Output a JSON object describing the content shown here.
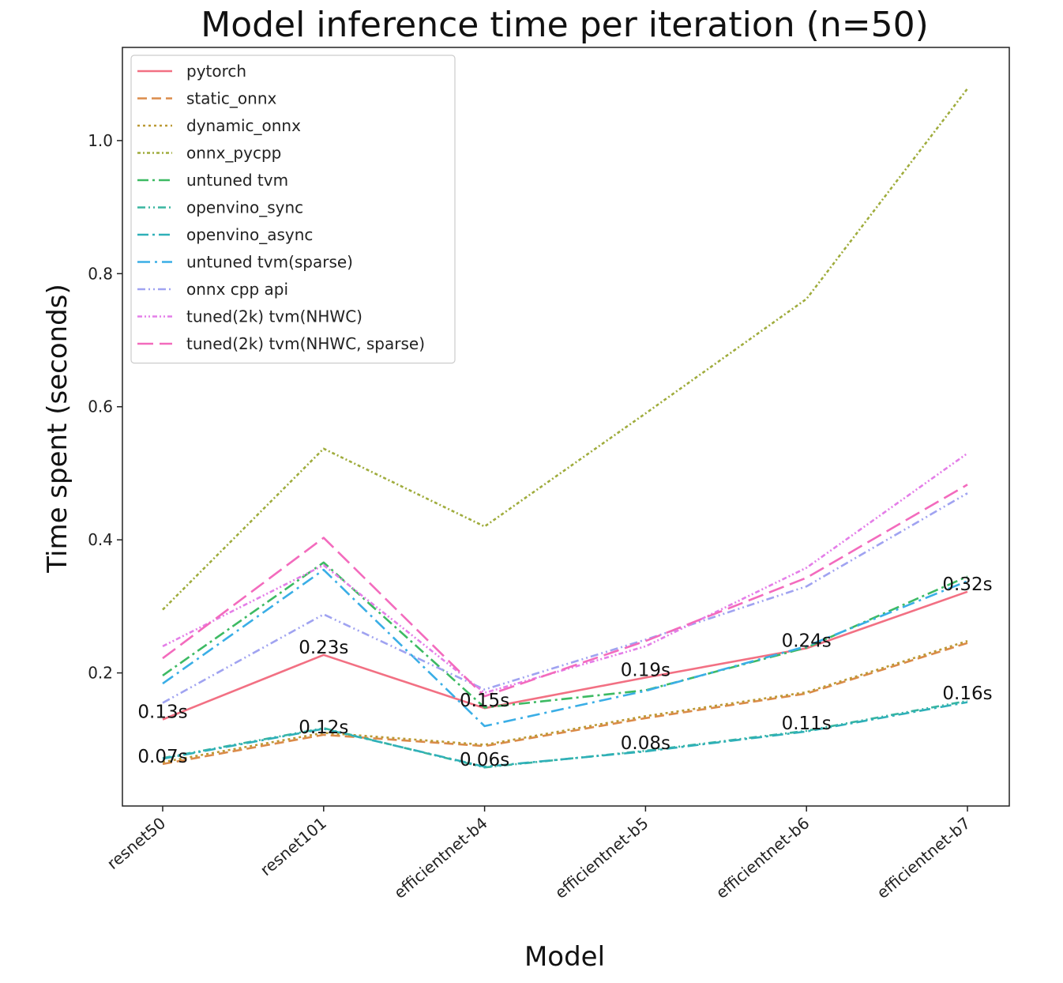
{
  "chart_data": {
    "type": "line",
    "title": "Model inference time per iteration (n=50)",
    "xlabel": "Model",
    "ylabel": "Time spent (seconds)",
    "categories": [
      "resnet50",
      "resnet101",
      "efficientnet-b4",
      "efficientnet-b5",
      "efficientnet-b6",
      "efficientnet-b7"
    ],
    "ylim": [
      0.0,
      1.14
    ],
    "yticks": [
      0.2,
      0.4,
      0.6,
      0.8,
      1.0
    ],
    "ytick_labels": [
      "0.2",
      "0.4",
      "0.6",
      "0.8",
      "1.0"
    ],
    "grid": false,
    "legend_position": "top-left",
    "series": [
      {
        "name": "pytorch",
        "color": "#f27083",
        "dash": "solid",
        "values": [
          0.13,
          0.227,
          0.147,
          0.193,
          0.237,
          0.322
        ]
      },
      {
        "name": "static_onnx",
        "color": "#db8b4a",
        "dash": "dashed",
        "values": [
          0.063,
          0.107,
          0.09,
          0.132,
          0.169,
          0.245
        ]
      },
      {
        "name": "dynamic_onnx",
        "color": "#bb9a35",
        "dash": "dotted",
        "values": [
          0.066,
          0.11,
          0.092,
          0.135,
          0.171,
          0.248
        ]
      },
      {
        "name": "onnx_pycpp",
        "color": "#9fac3c",
        "dash": "dashdot-dense",
        "values": [
          0.295,
          0.537,
          0.42,
          0.59,
          0.762,
          1.078
        ]
      },
      {
        "name": "untuned tvm",
        "color": "#3dba63",
        "dash": "dashdot",
        "values": [
          0.196,
          0.366,
          0.148,
          0.174,
          0.238,
          0.345
        ]
      },
      {
        "name": "openvino_sync",
        "color": "#39b5a0",
        "dash": "dashdotdot",
        "values": [
          0.072,
          0.117,
          0.058,
          0.083,
          0.113,
          0.158
        ]
      },
      {
        "name": "openvino_async",
        "color": "#2fb0b8",
        "dash": "dashdot",
        "values": [
          0.071,
          0.116,
          0.059,
          0.082,
          0.112,
          0.156
        ]
      },
      {
        "name": "untuned tvm(sparse)",
        "color": "#3aaee6",
        "dash": "dashdot-long",
        "values": [
          0.184,
          0.355,
          0.12,
          0.173,
          0.24,
          0.338
        ]
      },
      {
        "name": "onnx cpp api",
        "color": "#a0a3f1",
        "dash": "dashdotdot",
        "values": [
          0.155,
          0.288,
          0.175,
          0.25,
          0.33,
          0.47
        ]
      },
      {
        "name": "tuned(2k) tvm(NHWC)",
        "color": "#e47ee8",
        "dash": "dashdotdot-dense",
        "values": [
          0.24,
          0.362,
          0.17,
          0.24,
          0.358,
          0.53
        ]
      },
      {
        "name": "tuned(2k) tvm(NHWC, sparse)",
        "color": "#f36bbd",
        "dash": "longdash",
        "values": [
          0.222,
          0.403,
          0.165,
          0.248,
          0.343,
          0.483
        ]
      }
    ],
    "annotations": [
      {
        "category": "resnet50",
        "text": "0.13s",
        "y": 0.13
      },
      {
        "category": "resnet101",
        "text": "0.23s",
        "y": 0.227
      },
      {
        "category": "efficientnet-b4",
        "text": "0.15s",
        "y": 0.147
      },
      {
        "category": "efficientnet-b5",
        "text": "0.19s",
        "y": 0.193
      },
      {
        "category": "efficientnet-b6",
        "text": "0.24s",
        "y": 0.237
      },
      {
        "category": "efficientnet-b7",
        "text": "0.32s",
        "y": 0.322
      },
      {
        "category": "resnet50",
        "text": "0.07s",
        "y": 0.063
      },
      {
        "category": "resnet101",
        "text": "0.12s",
        "y": 0.107
      },
      {
        "category": "efficientnet-b4",
        "text": "0.06s",
        "y": 0.058
      },
      {
        "category": "efficientnet-b5",
        "text": "0.08s",
        "y": 0.083
      },
      {
        "category": "efficientnet-b6",
        "text": "0.11s",
        "y": 0.113
      },
      {
        "category": "efficientnet-b7",
        "text": "0.16s",
        "y": 0.158
      }
    ]
  }
}
